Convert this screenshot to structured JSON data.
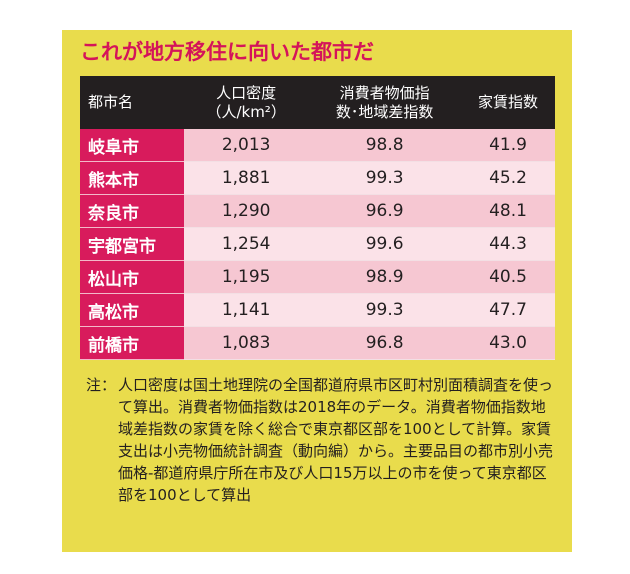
{
  "title": "これが地方移住に向いた都市だ",
  "headers": [
    "都市名",
    "人口密度\n（人/km²）",
    "消費者物価指\n数･地域差指数",
    "家賃指数"
  ],
  "rows": [
    [
      "岐阜市",
      "2,013",
      "98.8",
      "41.9"
    ],
    [
      "熊本市",
      "1,881",
      "99.3",
      "45.2"
    ],
    [
      "奈良市",
      "1,290",
      "96.9",
      "48.1"
    ],
    [
      "宇都宮市",
      "1,254",
      "99.6",
      "44.3"
    ],
    [
      "松山市",
      "1,195",
      "98.9",
      "40.5"
    ],
    [
      "高松市",
      "1,141",
      "99.3",
      "47.7"
    ],
    [
      "前橋市",
      "1,083",
      "96.8",
      "43.0"
    ]
  ],
  "notes": {
    "label": "注：",
    "text": "人口密度は国土地理院の全国都道府県市区町村別面積調査を使って算出。消費者物価指数は2018年のデータ。消費者物価指数地域差指数の家賃を除く総合で東京都区部を100として計算。家賃支出は小売物価統計調査（動向編）から。主要品目の都市別小売価格-都道府県庁所在市及び人口15万以上の市を使って東京都区部を100として算出"
  },
  "colors": {
    "background": "#e9dc4c",
    "title": "#d4145a",
    "header": "#231f20",
    "city_cell": "#d81b5c",
    "row_odd": "#f6c7d2",
    "row_even": "#fbe2e8"
  }
}
